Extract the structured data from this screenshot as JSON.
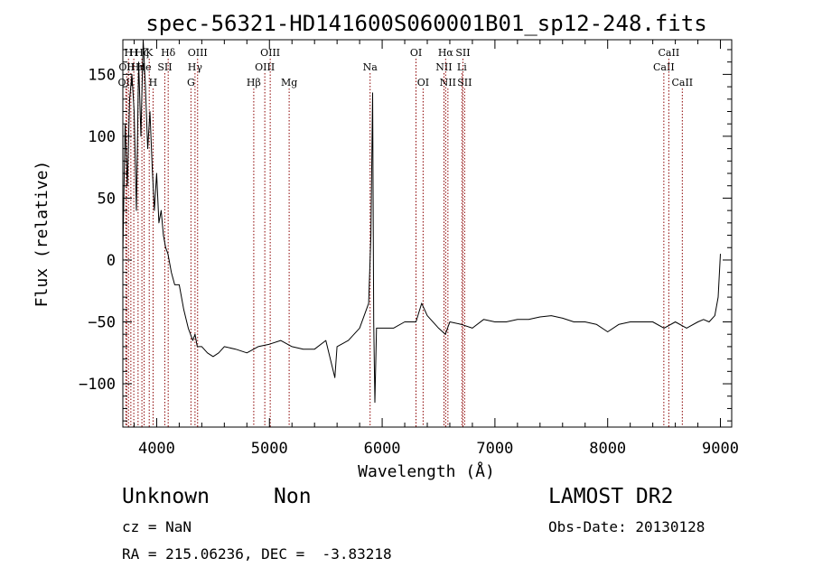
{
  "chart_data": {
    "type": "line",
    "title": "spec-56321-HD141600S060001B01_sp12-248.fits",
    "xlabel": "Wavelength (Å)",
    "ylabel": "Flux (relative)",
    "xlim": [
      3700,
      9100
    ],
    "ylim": [
      -135,
      178
    ],
    "xticks": [
      4000,
      5000,
      6000,
      7000,
      8000,
      9000
    ],
    "xtick_labels": [
      "4000",
      "5000",
      "6000",
      "7000",
      "8000",
      "9000"
    ],
    "yticks": [
      -100,
      -50,
      0,
      50,
      100,
      150
    ],
    "ytick_labels": [
      "−100",
      "−50",
      "0",
      "50",
      "100",
      "150"
    ],
    "line_color": "#000000",
    "marker_color": "#8b0000",
    "grid": false,
    "series": [
      {
        "x": [
          3700,
          3720,
          3740,
          3760,
          3780,
          3800,
          3820,
          3840,
          3860,
          3880,
          3900,
          3920,
          3940,
          3960,
          3980,
          4000,
          4020,
          4040,
          4060,
          4080,
          4100,
          4130,
          4160,
          4200,
          4240,
          4280,
          4320,
          4340,
          4360,
          4400,
          4450,
          4500,
          4550,
          4600,
          4700,
          4800,
          4900,
          5000,
          5100,
          5200,
          5300,
          5400,
          5500,
          5580,
          5600,
          5700,
          5800,
          5880,
          5900,
          5915,
          5925,
          5935,
          5950,
          6000,
          6100,
          6200,
          6300,
          6350,
          6400,
          6500,
          6560,
          6600,
          6700,
          6800,
          6900,
          7000,
          7100,
          7200,
          7300,
          7400,
          7500,
          7600,
          7700,
          7800,
          7900,
          8000,
          8100,
          8200,
          8300,
          8400,
          8500,
          8600,
          8700,
          8800,
          8850,
          8900,
          8950,
          8980,
          9000
        ],
        "y": [
          5,
          110,
          60,
          130,
          150,
          120,
          40,
          160,
          100,
          178,
          140,
          90,
          120,
          75,
          40,
          70,
          30,
          40,
          20,
          10,
          5,
          -10,
          -20,
          -20,
          -40,
          -55,
          -65,
          -60,
          -70,
          -70,
          -75,
          -78,
          -75,
          -70,
          -72,
          -75,
          -70,
          -68,
          -65,
          -70,
          -72,
          -72,
          -65,
          -95,
          -70,
          -65,
          -55,
          -35,
          20,
          135,
          -50,
          -115,
          -55,
          -55,
          -55,
          -50,
          -50,
          -35,
          -45,
          -55,
          -60,
          -50,
          -52,
          -55,
          -48,
          -50,
          -50,
          -48,
          -48,
          -46,
          -45,
          -47,
          -50,
          -50,
          -52,
          -58,
          -52,
          -50,
          -50,
          -50,
          -55,
          -50,
          -55,
          -50,
          -48,
          -50,
          -45,
          -30,
          5
        ]
      }
    ],
    "line_markers": [
      {
        "wl": 3727,
        "row": 2,
        "label": "OII"
      },
      {
        "wl": 3734,
        "row": 1,
        "label": "OII"
      },
      {
        "wl": 3750,
        "row": 0,
        "label": "H"
      },
      {
        "wl": 3771,
        "row": 1,
        "label": "H"
      },
      {
        "wl": 3797,
        "row": 0,
        "label": "H"
      },
      {
        "wl": 3835,
        "row": 1,
        "label": "Hη"
      },
      {
        "wl": 3869,
        "row": 0,
        "label": "Hζ"
      },
      {
        "wl": 3889,
        "row": 1,
        "label": "He"
      },
      {
        "wl": 3934,
        "row": 0,
        "label": "K"
      },
      {
        "wl": 3968,
        "row": 2,
        "label": "H"
      },
      {
        "wl": 4072,
        "row": 1,
        "label": "SII"
      },
      {
        "wl": 4102,
        "row": 0,
        "label": "Hδ"
      },
      {
        "wl": 4304,
        "row": 2,
        "label": "G"
      },
      {
        "wl": 4340,
        "row": 1,
        "label": "Hγ"
      },
      {
        "wl": 4363,
        "row": 0,
        "label": "OIII"
      },
      {
        "wl": 4861,
        "row": 2,
        "label": "Hβ"
      },
      {
        "wl": 4959,
        "row": 1,
        "label": "OIII"
      },
      {
        "wl": 5007,
        "row": 0,
        "label": "OIII"
      },
      {
        "wl": 5175,
        "row": 2,
        "label": "Mg"
      },
      {
        "wl": 5893,
        "row": 1,
        "label": "Na"
      },
      {
        "wl": 6300,
        "row": 0,
        "label": "OI"
      },
      {
        "wl": 6363,
        "row": 2,
        "label": "OI"
      },
      {
        "wl": 6548,
        "row": 1,
        "label": "NII"
      },
      {
        "wl": 6563,
        "row": 0,
        "label": "Hα"
      },
      {
        "wl": 6583,
        "row": 2,
        "label": "NII"
      },
      {
        "wl": 6707,
        "row": 1,
        "label": "Li"
      },
      {
        "wl": 6716,
        "row": 0,
        "label": "SII"
      },
      {
        "wl": 6731,
        "row": 2,
        "label": "SII"
      },
      {
        "wl": 8498,
        "row": 1,
        "label": "CaII"
      },
      {
        "wl": 8542,
        "row": 0,
        "label": "CaII"
      },
      {
        "wl": 8662,
        "row": 2,
        "label": "CaII"
      }
    ]
  },
  "info": {
    "object_class": "Unknown",
    "object_subclass": "Non",
    "survey": "LAMOST DR2",
    "cz": "cz = NaN",
    "obs_date": "Obs-Date: 20130128",
    "coords": "RA = 215.06236, DEC =  -3.83218"
  }
}
